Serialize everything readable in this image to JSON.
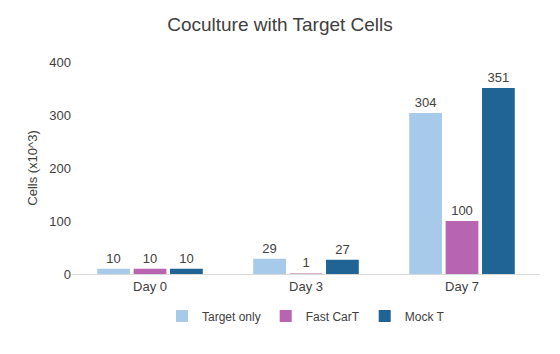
{
  "chart_data": {
    "type": "bar",
    "title": "Coculture with Target Cells",
    "y_label": "Cells (x10^3)",
    "categories": [
      "Day 0",
      "Day 3",
      "Day 7"
    ],
    "series": [
      {
        "name": "Target only",
        "color": "#a7c9ea",
        "values": [
          10,
          29,
          304
        ]
      },
      {
        "name": "Fast CarT",
        "color": "#b765b1",
        "values": [
          10,
          1,
          100
        ]
      },
      {
        "name": "Mock T",
        "color": "#1f6494",
        "values": [
          10,
          27,
          351
        ]
      }
    ],
    "ylim": [
      0,
      400
    ],
    "yticks": [
      0,
      100,
      200,
      300,
      400
    ],
    "grid": false,
    "legend": "bottom",
    "data_labels": true
  }
}
